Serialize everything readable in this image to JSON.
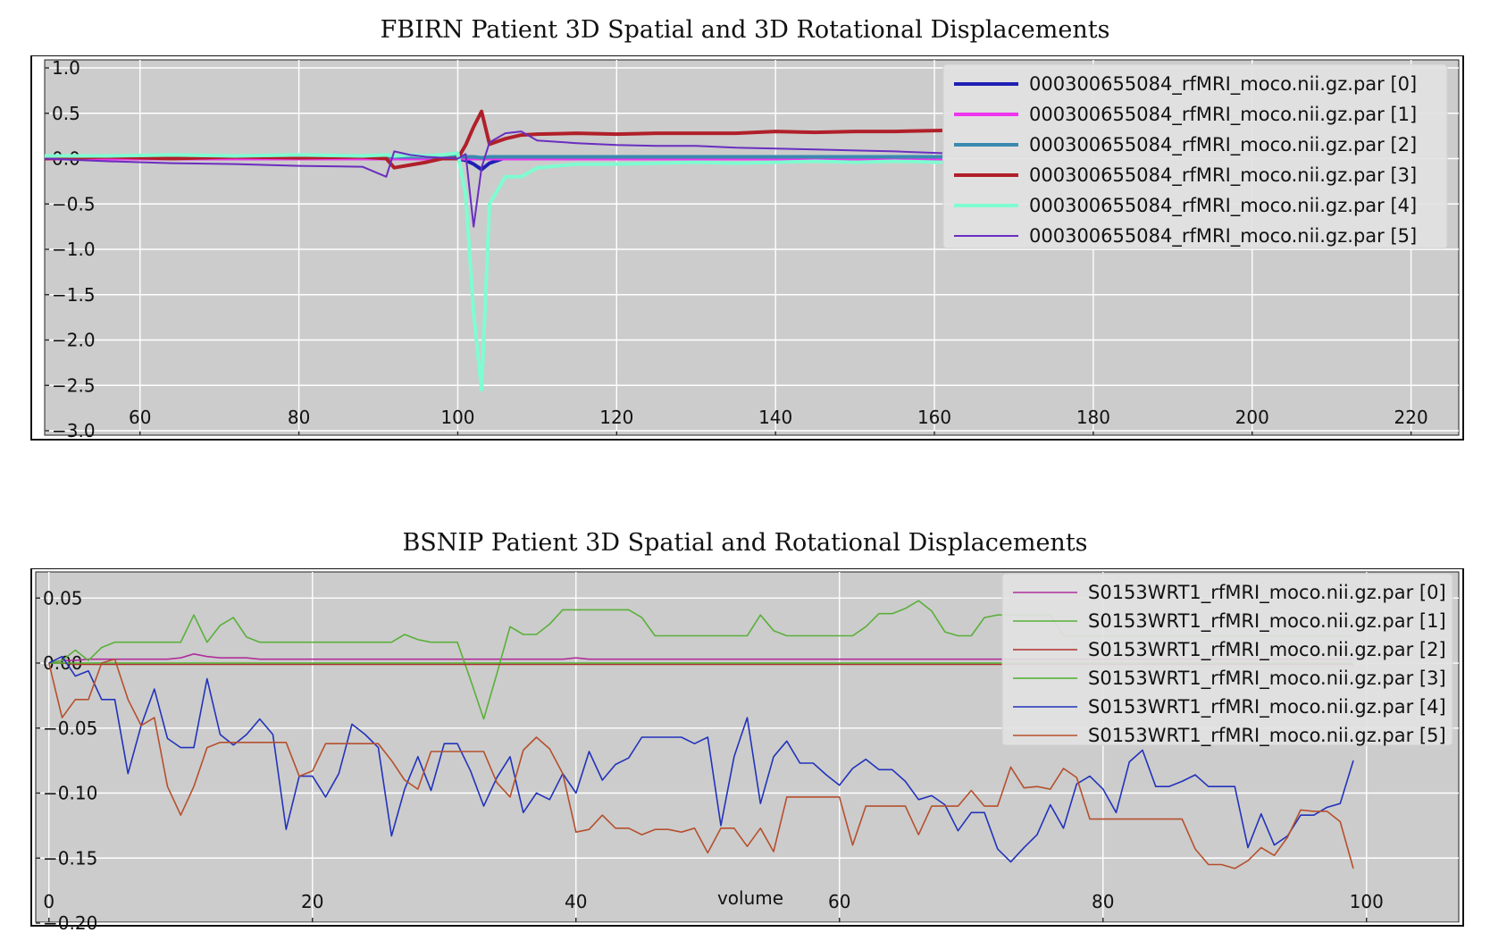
{
  "chart_data": [
    {
      "type": "line",
      "title": "FBIRN Patient 3D Spatial and 3D Rotational Displacements",
      "xlabel": "",
      "ylabel": "",
      "xlim": [
        48,
        226
      ],
      "ylim": [
        -3.0,
        1.0
      ],
      "xticks": [
        "60",
        "80",
        "100",
        "120",
        "140",
        "160",
        "180",
        "200",
        "220"
      ],
      "yticks": [
        "1.0",
        "0.5",
        "0.0",
        "−0.5",
        "−1.0",
        "−1.5",
        "−2.0",
        "−2.5",
        "−3.0"
      ],
      "grid": true,
      "legend_position": "upper-right",
      "x": [
        48,
        56,
        64,
        72,
        80,
        88,
        91,
        92,
        94,
        96,
        98,
        100,
        101,
        102,
        103,
        104,
        106,
        108,
        110,
        115,
        120,
        125,
        130,
        135,
        140,
        145,
        150,
        155,
        161
      ],
      "series": [
        {
          "name": "000300655084_rfMRI_moco.nii.gz.par [0]",
          "color": "#1f1fb4",
          "width": 4,
          "values": [
            0.0,
            0.01,
            0.0,
            0.01,
            0.0,
            0.01,
            0.0,
            0.01,
            0.0,
            0.0,
            0.0,
            0.0,
            -0.02,
            -0.06,
            -0.12,
            -0.05,
            0.01,
            0.02,
            0.02,
            0.02,
            0.02,
            0.02,
            0.02,
            0.02,
            0.02,
            0.02,
            0.02,
            0.02,
            0.02
          ]
        },
        {
          "name": "000300655084_rfMRI_moco.nii.gz.par [1]",
          "color": "#ee36ee",
          "width": 4,
          "values": [
            0.0,
            0.0,
            0.0,
            0.0,
            0.0,
            0.0,
            0.0,
            0.0,
            0.0,
            0.0,
            0.0,
            0.0,
            0.0,
            0.0,
            0.0,
            0.0,
            0.0,
            0.0,
            0.0,
            0.0,
            0.0,
            0.0,
            0.0,
            0.0,
            0.0,
            0.0,
            0.0,
            0.0,
            0.0
          ]
        },
        {
          "name": "000300655084_rfMRI_moco.nii.gz.par [2]",
          "color": "#3a8ab0",
          "width": 4,
          "values": [
            0.02,
            0.02,
            0.02,
            0.02,
            0.02,
            0.02,
            0.02,
            0.02,
            0.02,
            0.02,
            0.02,
            0.02,
            0.02,
            0.02,
            0.01,
            0.02,
            0.02,
            0.02,
            0.02,
            0.02,
            0.02,
            0.02,
            0.02,
            0.02,
            0.02,
            0.02,
            0.02,
            0.02,
            0.02
          ]
        },
        {
          "name": "000300655084_rfMRI_moco.nii.gz.par [3]",
          "color": "#b0202a",
          "width": 4,
          "values": [
            0.0,
            0.02,
            0.0,
            0.02,
            0.01,
            0.02,
            0.0,
            -0.1,
            -0.07,
            -0.04,
            0.0,
            0.0,
            0.15,
            0.35,
            0.52,
            0.16,
            0.22,
            0.26,
            0.27,
            0.28,
            0.27,
            0.28,
            0.28,
            0.28,
            0.3,
            0.29,
            0.3,
            0.3,
            0.31
          ]
        },
        {
          "name": "000300655084_rfMRI_moco.nii.gz.par [4]",
          "color": "#7ffcd0",
          "width": 4,
          "values": [
            0.03,
            0.03,
            0.04,
            0.03,
            0.04,
            0.03,
            0.04,
            0.03,
            0.04,
            0.03,
            0.04,
            0.06,
            -0.4,
            -1.7,
            -2.55,
            -0.5,
            -0.2,
            -0.2,
            -0.1,
            -0.06,
            -0.06,
            -0.05,
            -0.04,
            -0.05,
            -0.04,
            -0.03,
            -0.04,
            -0.03,
            -0.04
          ]
        },
        {
          "name": "000300655084_rfMRI_moco.nii.gz.par [5]",
          "color": "#6a2ec0",
          "width": 2,
          "values": [
            0.0,
            -0.03,
            -0.05,
            -0.06,
            -0.08,
            -0.09,
            -0.2,
            0.08,
            0.04,
            0.02,
            0.01,
            0.0,
            0.05,
            -0.75,
            -0.1,
            0.18,
            0.28,
            0.3,
            0.2,
            0.17,
            0.15,
            0.14,
            0.14,
            0.12,
            0.11,
            0.1,
            0.09,
            0.08,
            0.06
          ]
        }
      ]
    },
    {
      "type": "line",
      "title": "BSNIP Patient 3D Spatial and Rotational Displacements",
      "xlabel": "volume",
      "ylabel": "",
      "xlim": [
        -1,
        107
      ],
      "ylim": [
        -0.2,
        0.066
      ],
      "xticks": [
        "0",
        "20",
        "40",
        "60",
        "80",
        "100"
      ],
      "yticks": [
        "0.05",
        "0.00",
        "−0.05",
        "−0.10",
        "−0.15",
        "−0.20"
      ],
      "grid": true,
      "legend_position": "upper-right",
      "x": [
        0,
        1,
        2,
        3,
        4,
        5,
        6,
        7,
        8,
        9,
        10,
        11,
        12,
        13,
        14,
        15,
        16,
        17,
        18,
        19,
        20,
        21,
        22,
        23,
        24,
        25,
        26,
        27,
        28,
        29,
        30,
        31,
        32,
        33,
        34,
        35,
        36,
        37,
        38,
        39,
        40,
        41,
        42,
        43,
        44,
        45,
        46,
        47,
        48,
        49,
        50,
        51,
        52,
        53,
        54,
        55,
        56,
        57,
        58,
        59,
        60,
        61,
        62,
        63,
        64,
        65,
        66,
        67,
        68,
        69,
        70,
        71,
        72,
        73,
        74,
        75,
        76,
        77,
        78,
        79,
        80,
        81,
        82,
        83,
        84,
        85,
        86,
        87,
        88,
        89,
        90,
        91,
        92,
        93,
        94,
        95,
        96,
        97,
        98,
        99
      ],
      "series": [
        {
          "name": "S0153WRT1_rfMRI_moco.nii.gz.par [0]",
          "color": "#b02f9a",
          "width": 1.6,
          "values": [
            0.0,
            0.002,
            0.002,
            0.003,
            0.003,
            0.003,
            0.003,
            0.003,
            0.003,
            0.003,
            0.004,
            0.007,
            0.005,
            0.004,
            0.004,
            0.004,
            0.003,
            0.003,
            0.003,
            0.003,
            0.003,
            0.003,
            0.003,
            0.003,
            0.003,
            0.003,
            0.003,
            0.003,
            0.003,
            0.003,
            0.003,
            0.003,
            0.003,
            0.003,
            0.003,
            0.003,
            0.003,
            0.003,
            0.003,
            0.003,
            0.004,
            0.003,
            0.003,
            0.003,
            0.003,
            0.003,
            0.003,
            0.003,
            0.003,
            0.003,
            0.003,
            0.003,
            0.003,
            0.003,
            0.003,
            0.003,
            0.003,
            0.003,
            0.003,
            0.003,
            0.003,
            0.003,
            0.003,
            0.003,
            0.003,
            0.003,
            0.003,
            0.003,
            0.003,
            0.003,
            0.003,
            0.003,
            0.003,
            0.003,
            0.003,
            0.003,
            0.003,
            0.003,
            0.003,
            0.003,
            0.003,
            0.003,
            0.003,
            0.003,
            0.003,
            0.003,
            0.003,
            0.003,
            0.003,
            0.003,
            0.003,
            0.003,
            0.003,
            0.003,
            0.003,
            0.003,
            0.003,
            0.003,
            0.003,
            0.003
          ]
        },
        {
          "name": "S0153WRT1_rfMRI_moco.nii.gz.par [1]",
          "color": "#5ab03a",
          "width": 1.6,
          "values": [
            0.0,
            0.002,
            0.01,
            0.002,
            0.012,
            0.016,
            0.016,
            0.016,
            0.016,
            0.016,
            0.016,
            0.037,
            0.016,
            0.029,
            0.035,
            0.02,
            0.016,
            0.016,
            0.016,
            0.016,
            0.016,
            0.016,
            0.016,
            0.016,
            0.016,
            0.016,
            0.016,
            0.022,
            0.018,
            0.016,
            0.016,
            0.016,
            -0.013,
            -0.043,
            -0.008,
            0.028,
            0.022,
            0.022,
            0.03,
            0.041,
            0.041,
            0.041,
            0.041,
            0.041,
            0.041,
            0.035,
            0.021,
            0.021,
            0.021,
            0.021,
            0.021,
            0.021,
            0.021,
            0.021,
            0.037,
            0.025,
            0.021,
            0.021,
            0.021,
            0.021,
            0.021,
            0.021,
            0.028,
            0.038,
            0.038,
            0.042,
            0.048,
            0.04,
            0.024,
            0.021,
            0.021,
            0.035,
            0.037,
            0.037,
            0.037,
            0.037,
            0.037,
            0.021,
            0.021,
            0.021,
            0.021,
            0.021,
            0.021,
            0.021,
            0.021,
            0.021,
            0.021,
            0.021,
            0.021,
            0.021,
            0.021,
            0.021,
            0.021,
            0.021,
            0.021,
            0.021,
            0.021,
            0.021,
            0.021,
            0.021
          ]
        },
        {
          "name": "S0153WRT1_rfMRI_moco.nii.gz.par [2]",
          "color": "#b0302a",
          "width": 1.6,
          "values": [
            0.0,
            0.0,
            -0.001,
            -0.001,
            -0.001,
            -0.001,
            -0.001,
            -0.001,
            -0.001,
            -0.001,
            -0.001,
            -0.001,
            -0.001,
            -0.001,
            -0.001,
            -0.001,
            -0.001,
            -0.001,
            -0.001,
            -0.001,
            -0.001,
            -0.001,
            -0.001,
            -0.001,
            -0.001,
            -0.001,
            -0.001,
            -0.001,
            -0.001,
            -0.001,
            -0.001,
            -0.001,
            -0.001,
            -0.001,
            -0.001,
            -0.001,
            -0.001,
            -0.001,
            -0.001,
            -0.001,
            -0.001,
            -0.001,
            -0.001,
            -0.001,
            -0.001,
            -0.001,
            -0.001,
            -0.001,
            -0.001,
            -0.001,
            -0.001,
            -0.001,
            -0.001,
            -0.001,
            -0.001,
            -0.001,
            -0.001,
            -0.001,
            -0.001,
            -0.001,
            -0.001,
            -0.001,
            -0.001,
            -0.001,
            -0.001,
            -0.001,
            -0.001,
            -0.001,
            -0.001,
            -0.001,
            -0.001,
            -0.001,
            -0.001,
            -0.001,
            -0.001,
            -0.001,
            -0.001,
            -0.001,
            -0.001,
            -0.001,
            -0.001,
            -0.001,
            -0.001,
            -0.001,
            -0.001,
            -0.001,
            -0.001,
            -0.001,
            -0.001,
            -0.001,
            -0.001,
            -0.001,
            -0.001,
            -0.001,
            -0.001,
            -0.001,
            -0.001,
            -0.001,
            -0.001,
            -0.001
          ]
        },
        {
          "name": "S0153WRT1_rfMRI_moco.nii.gz.par [3]",
          "color": "#4cb02c",
          "width": 1.6,
          "values": [
            0.0,
            0.0,
            0.0,
            0.0,
            0.0,
            0.0,
            0.0,
            0.0,
            0.0,
            0.0,
            0.0,
            0.0,
            0.0,
            0.0,
            0.0,
            0.0,
            0.0,
            0.0,
            0.0,
            0.0,
            0.0,
            0.0,
            0.0,
            0.0,
            0.0,
            0.0,
            0.0,
            0.0,
            0.0,
            0.0,
            0.0,
            0.0,
            0.0,
            0.0,
            0.0,
            0.0,
            0.0,
            0.0,
            0.0,
            0.0,
            0.0,
            0.0,
            0.0,
            0.0,
            0.0,
            0.0,
            0.0,
            0.0,
            0.0,
            0.0,
            0.0,
            0.0,
            0.0,
            0.0,
            0.0,
            0.0,
            0.0,
            0.0,
            0.0,
            0.0,
            0.0,
            0.0,
            0.0,
            0.0,
            0.0,
            0.0,
            0.0,
            0.0,
            0.0,
            0.0,
            0.0,
            0.0,
            0.0,
            0.0,
            0.0,
            0.0,
            0.0,
            0.0,
            0.0,
            0.0,
            0.0,
            0.0,
            0.0,
            0.0,
            0.0,
            0.0,
            0.0,
            0.0,
            0.0,
            0.0,
            0.0,
            0.0,
            0.0,
            0.0,
            0.0,
            0.0,
            0.0,
            0.0,
            0.0,
            0.0
          ]
        },
        {
          "name": "S0153WRT1_rfMRI_moco.nii.gz.par [4]",
          "color": "#2233bb",
          "width": 1.6,
          "values": [
            0.0,
            0.005,
            -0.01,
            -0.006,
            -0.028,
            -0.028,
            -0.085,
            -0.048,
            -0.02,
            -0.058,
            -0.065,
            -0.065,
            -0.012,
            -0.055,
            -0.063,
            -0.055,
            -0.043,
            -0.055,
            -0.128,
            -0.087,
            -0.087,
            -0.103,
            -0.085,
            -0.047,
            -0.055,
            -0.065,
            -0.133,
            -0.097,
            -0.072,
            -0.098,
            -0.062,
            -0.062,
            -0.083,
            -0.11,
            -0.088,
            -0.072,
            -0.115,
            -0.1,
            -0.105,
            -0.085,
            -0.1,
            -0.068,
            -0.09,
            -0.078,
            -0.073,
            -0.057,
            -0.057,
            -0.057,
            -0.057,
            -0.062,
            -0.057,
            -0.125,
            -0.072,
            -0.042,
            -0.108,
            -0.072,
            -0.06,
            -0.077,
            -0.077,
            -0.086,
            -0.094,
            -0.081,
            -0.074,
            -0.082,
            -0.082,
            -0.091,
            -0.105,
            -0.102,
            -0.109,
            -0.129,
            -0.115,
            -0.115,
            -0.143,
            -0.153,
            -0.142,
            -0.132,
            -0.109,
            -0.127,
            -0.093,
            -0.087,
            -0.097,
            -0.115,
            -0.076,
            -0.067,
            -0.095,
            -0.095,
            -0.091,
            -0.086,
            -0.095,
            -0.095,
            -0.095,
            -0.142,
            -0.116,
            -0.14,
            -0.133,
            -0.117,
            -0.117,
            -0.111,
            -0.108,
            -0.075
          ]
        },
        {
          "name": "S0153WRT1_rfMRI_moco.nii.gz.par [5]",
          "color": "#b5502e",
          "width": 1.6,
          "values": [
            0.0,
            -0.042,
            -0.028,
            -0.028,
            0.0,
            0.003,
            -0.028,
            -0.048,
            -0.042,
            -0.095,
            -0.117,
            -0.095,
            -0.065,
            -0.061,
            -0.061,
            -0.061,
            -0.061,
            -0.061,
            -0.061,
            -0.087,
            -0.083,
            -0.062,
            -0.062,
            -0.062,
            -0.062,
            -0.062,
            -0.075,
            -0.09,
            -0.097,
            -0.068,
            -0.068,
            -0.068,
            -0.068,
            -0.068,
            -0.092,
            -0.103,
            -0.067,
            -0.057,
            -0.066,
            -0.085,
            -0.13,
            -0.128,
            -0.117,
            -0.127,
            -0.127,
            -0.132,
            -0.128,
            -0.128,
            -0.13,
            -0.127,
            -0.146,
            -0.127,
            -0.127,
            -0.141,
            -0.127,
            -0.145,
            -0.103,
            -0.103,
            -0.103,
            -0.103,
            -0.103,
            -0.14,
            -0.11,
            -0.11,
            -0.11,
            -0.11,
            -0.132,
            -0.11,
            -0.11,
            -0.11,
            -0.098,
            -0.11,
            -0.11,
            -0.08,
            -0.096,
            -0.095,
            -0.097,
            -0.081,
            -0.088,
            -0.12,
            -0.12,
            -0.12,
            -0.12,
            -0.12,
            -0.12,
            -0.12,
            -0.12,
            -0.143,
            -0.155,
            -0.155,
            -0.158,
            -0.152,
            -0.142,
            -0.148,
            -0.134,
            -0.113,
            -0.114,
            -0.114,
            -0.122,
            -0.158
          ]
        }
      ]
    }
  ]
}
